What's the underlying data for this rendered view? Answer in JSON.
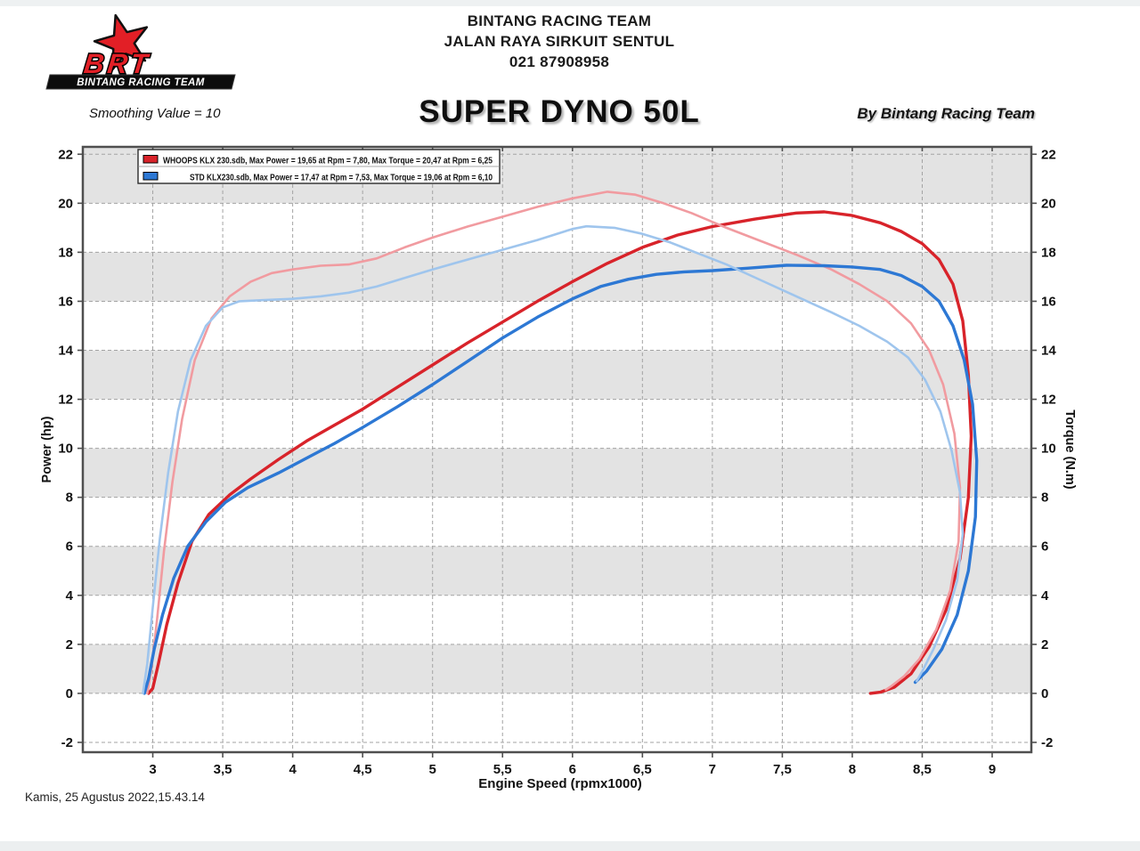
{
  "page": {
    "logo": {
      "brand": "BRT",
      "team": "BINTANG RACING TEAM"
    },
    "header": {
      "line1": "BINTANG RACING TEAM",
      "line2": "JALAN RAYA SIRKUIT SENTUL",
      "line3": "021 87908958"
    },
    "title_row": {
      "smoothing": "Smoothing Value = 10",
      "title": "SUPER DYNO 50L",
      "byline": "By Bintang Racing Team"
    },
    "footer": {
      "timestamp": "Kamis, 25 Agustus 2022,15.43.14"
    }
  },
  "chart_data": {
    "type": "line",
    "title": "SUPER DYNO 50L",
    "xlabel": "Engine Speed (rpmx1000)",
    "ylabel_left": "Power (hp)",
    "ylabel_right": "Torque (N.m)",
    "xlim": [
      2.5,
      9.28
    ],
    "ylim": [
      -2.4,
      22.3
    ],
    "x_ticks": {
      "values": [
        3,
        3.5,
        4,
        4.5,
        5,
        5.5,
        6,
        6.5,
        7,
        7.5,
        8,
        8.5,
        9
      ],
      "labels": [
        "3",
        "3,5",
        "4",
        "4,5",
        "5",
        "5,5",
        "6",
        "6,5",
        "7",
        "7,5",
        "8",
        "8,5",
        "9"
      ]
    },
    "y_ticks": {
      "values": [
        -2,
        0,
        2,
        4,
        6,
        8,
        10,
        12,
        14,
        16,
        18,
        20,
        22
      ],
      "labels": [
        "-2",
        "0",
        "2",
        "4",
        "6",
        "8",
        "10",
        "12",
        "14",
        "16",
        "18",
        "20",
        "22"
      ]
    },
    "grid": {
      "on": true,
      "color": "#a3a3a3",
      "dash": "4 3"
    },
    "bands": {
      "color": "#e3e3e3",
      "ranges": [
        [
          0,
          2
        ],
        [
          4,
          6
        ],
        [
          8,
          10
        ],
        [
          12,
          14
        ],
        [
          16,
          18
        ],
        [
          20,
          22.3
        ]
      ]
    },
    "frame_color": "#4f4f4f",
    "legend": {
      "position": "top-left",
      "entries": [
        {
          "swatch_color": "#d8232a",
          "label": "WHOOPS KLX 230.sdb, Max Power = 19,65 at Rpm = 7,80, Max Torque = 20,47 at Rpm = 6,25"
        },
        {
          "swatch_color": "#2d78d4",
          "label": "STD KLX230.sdb, Max Power = 17,47 at Rpm = 7,53, Max Torque = 19,06 at Rpm = 6,10"
        }
      ]
    },
    "series": [
      {
        "name": "WHOOPS power (hp)",
        "axis": "left",
        "color": "#d8232a",
        "width": 3.4,
        "max": {
          "value": 19.65,
          "at_rpm": 7.8
        },
        "points": [
          [
            2.97,
            0
          ],
          [
            3.0,
            0.2
          ],
          [
            3.04,
            1.2
          ],
          [
            3.1,
            2.8
          ],
          [
            3.18,
            4.5
          ],
          [
            3.28,
            6.2
          ],
          [
            3.4,
            7.3
          ],
          [
            3.55,
            8.1
          ],
          [
            3.7,
            8.75
          ],
          [
            3.9,
            9.55
          ],
          [
            4.1,
            10.3
          ],
          [
            4.3,
            10.95
          ],
          [
            4.5,
            11.6
          ],
          [
            4.75,
            12.5
          ],
          [
            5.0,
            13.4
          ],
          [
            5.25,
            14.3
          ],
          [
            5.5,
            15.15
          ],
          [
            5.75,
            16.0
          ],
          [
            6.0,
            16.8
          ],
          [
            6.25,
            17.55
          ],
          [
            6.5,
            18.2
          ],
          [
            6.75,
            18.7
          ],
          [
            7.0,
            19.05
          ],
          [
            7.3,
            19.35
          ],
          [
            7.6,
            19.6
          ],
          [
            7.8,
            19.65
          ],
          [
            8.0,
            19.5
          ],
          [
            8.2,
            19.2
          ],
          [
            8.35,
            18.85
          ],
          [
            8.5,
            18.35
          ],
          [
            8.62,
            17.7
          ],
          [
            8.72,
            16.7
          ],
          [
            8.79,
            15.2
          ],
          [
            8.83,
            13.0
          ],
          [
            8.85,
            10.5
          ],
          [
            8.83,
            8.0
          ],
          [
            8.77,
            5.5
          ],
          [
            8.67,
            3.4
          ],
          [
            8.55,
            1.9
          ],
          [
            8.42,
            0.8
          ],
          [
            8.3,
            0.25
          ],
          [
            8.2,
            0.05
          ],
          [
            8.13,
            0
          ]
        ]
      },
      {
        "name": "WHOOPS torque (N.m)",
        "axis": "right",
        "color": "#f19ba0",
        "width": 2.6,
        "max": {
          "value": 20.47,
          "at_rpm": 6.25
        },
        "points": [
          [
            2.96,
            0
          ],
          [
            2.99,
            1.0
          ],
          [
            3.03,
            3.0
          ],
          [
            3.08,
            5.8
          ],
          [
            3.14,
            8.6
          ],
          [
            3.21,
            11.2
          ],
          [
            3.3,
            13.6
          ],
          [
            3.42,
            15.3
          ],
          [
            3.55,
            16.2
          ],
          [
            3.7,
            16.8
          ],
          [
            3.85,
            17.15
          ],
          [
            4.0,
            17.3
          ],
          [
            4.2,
            17.45
          ],
          [
            4.4,
            17.5
          ],
          [
            4.6,
            17.75
          ],
          [
            4.8,
            18.2
          ],
          [
            5.0,
            18.6
          ],
          [
            5.25,
            19.05
          ],
          [
            5.5,
            19.45
          ],
          [
            5.75,
            19.85
          ],
          [
            6.0,
            20.2
          ],
          [
            6.25,
            20.47
          ],
          [
            6.45,
            20.35
          ],
          [
            6.65,
            20.0
          ],
          [
            6.85,
            19.6
          ],
          [
            7.1,
            19.0
          ],
          [
            7.35,
            18.45
          ],
          [
            7.6,
            17.9
          ],
          [
            7.85,
            17.3
          ],
          [
            8.05,
            16.7
          ],
          [
            8.25,
            16.0
          ],
          [
            8.42,
            15.1
          ],
          [
            8.55,
            14.0
          ],
          [
            8.65,
            12.6
          ],
          [
            8.73,
            10.6
          ],
          [
            8.77,
            8.4
          ],
          [
            8.76,
            6.2
          ],
          [
            8.7,
            4.2
          ],
          [
            8.6,
            2.6
          ],
          [
            8.48,
            1.4
          ],
          [
            8.37,
            0.7
          ],
          [
            8.28,
            0.3
          ],
          [
            8.24,
            0.15
          ]
        ]
      },
      {
        "name": "STD power (hp)",
        "axis": "left",
        "color": "#2d78d4",
        "width": 3.4,
        "max": {
          "value": 17.47,
          "at_rpm": 7.53
        },
        "points": [
          [
            2.94,
            0
          ],
          [
            2.97,
            0.6
          ],
          [
            3.01,
            1.8
          ],
          [
            3.07,
            3.2
          ],
          [
            3.15,
            4.7
          ],
          [
            3.25,
            6.0
          ],
          [
            3.38,
            7.0
          ],
          [
            3.52,
            7.8
          ],
          [
            3.68,
            8.4
          ],
          [
            3.9,
            9.0
          ],
          [
            4.1,
            9.6
          ],
          [
            4.3,
            10.2
          ],
          [
            4.5,
            10.85
          ],
          [
            4.75,
            11.7
          ],
          [
            5.0,
            12.6
          ],
          [
            5.25,
            13.55
          ],
          [
            5.5,
            14.5
          ],
          [
            5.75,
            15.35
          ],
          [
            6.0,
            16.1
          ],
          [
            6.2,
            16.6
          ],
          [
            6.4,
            16.9
          ],
          [
            6.6,
            17.1
          ],
          [
            6.8,
            17.2
          ],
          [
            7.0,
            17.25
          ],
          [
            7.25,
            17.35
          ],
          [
            7.53,
            17.47
          ],
          [
            7.8,
            17.45
          ],
          [
            8.0,
            17.4
          ],
          [
            8.2,
            17.3
          ],
          [
            8.35,
            17.05
          ],
          [
            8.5,
            16.6
          ],
          [
            8.62,
            16.0
          ],
          [
            8.72,
            15.0
          ],
          [
            8.8,
            13.6
          ],
          [
            8.86,
            11.8
          ],
          [
            8.89,
            9.5
          ],
          [
            8.88,
            7.2
          ],
          [
            8.83,
            5.0
          ],
          [
            8.75,
            3.2
          ],
          [
            8.64,
            1.8
          ],
          [
            8.53,
            0.9
          ],
          [
            8.45,
            0.45
          ]
        ]
      },
      {
        "name": "STD torque (N.m)",
        "axis": "right",
        "color": "#9fc5ed",
        "width": 2.6,
        "max": {
          "value": 19.06,
          "at_rpm": 6.1
        },
        "points": [
          [
            2.93,
            0
          ],
          [
            2.96,
            1.2
          ],
          [
            3.0,
            3.5
          ],
          [
            3.05,
            6.3
          ],
          [
            3.11,
            9.0
          ],
          [
            3.18,
            11.5
          ],
          [
            3.27,
            13.6
          ],
          [
            3.38,
            15.0
          ],
          [
            3.5,
            15.75
          ],
          [
            3.62,
            16.0
          ],
          [
            3.8,
            16.05
          ],
          [
            4.0,
            16.1
          ],
          [
            4.2,
            16.2
          ],
          [
            4.4,
            16.35
          ],
          [
            4.6,
            16.6
          ],
          [
            4.8,
            16.95
          ],
          [
            5.0,
            17.3
          ],
          [
            5.25,
            17.7
          ],
          [
            5.5,
            18.1
          ],
          [
            5.75,
            18.5
          ],
          [
            6.0,
            18.95
          ],
          [
            6.1,
            19.06
          ],
          [
            6.3,
            19.0
          ],
          [
            6.5,
            18.75
          ],
          [
            6.7,
            18.4
          ],
          [
            6.9,
            17.95
          ],
          [
            7.1,
            17.5
          ],
          [
            7.35,
            16.85
          ],
          [
            7.6,
            16.2
          ],
          [
            7.85,
            15.55
          ],
          [
            8.05,
            15.0
          ],
          [
            8.25,
            14.35
          ],
          [
            8.4,
            13.7
          ],
          [
            8.52,
            12.8
          ],
          [
            8.63,
            11.5
          ],
          [
            8.71,
            9.9
          ],
          [
            8.77,
            8.2
          ],
          [
            8.79,
            6.5
          ],
          [
            8.75,
            4.6
          ],
          [
            8.67,
            3.0
          ],
          [
            8.58,
            1.8
          ],
          [
            8.5,
            0.9
          ],
          [
            8.46,
            0.5
          ]
        ]
      }
    ]
  }
}
